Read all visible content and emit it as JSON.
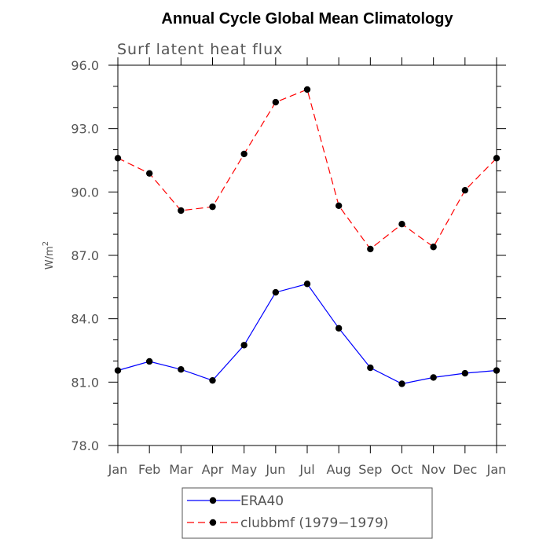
{
  "chart_data": {
    "type": "line",
    "title": "Annual Cycle Global Mean Climatology",
    "subtitle": "Surf latent heat flux",
    "xlabel": "",
    "ylabel_base": "W/m",
    "ylabel_sup": "2",
    "categories": [
      "Jan",
      "Feb",
      "Mar",
      "Apr",
      "May",
      "Jun",
      "Jul",
      "Aug",
      "Sep",
      "Oct",
      "Nov",
      "Dec",
      "Jan"
    ],
    "ylim": [
      78.0,
      96.0
    ],
    "yticks": [
      78.0,
      81.0,
      84.0,
      87.0,
      90.0,
      93.0,
      96.0
    ],
    "ytick_labels": [
      "78.0",
      "81.0",
      "84.0",
      "87.0",
      "90.0",
      "93.0",
      "96.0"
    ],
    "legend_position": "bottom-center",
    "series": [
      {
        "name": "ERA40",
        "color": "#0000ff",
        "dashed": false,
        "values": [
          81.55,
          81.98,
          81.6,
          81.08,
          82.75,
          85.25,
          85.65,
          83.55,
          81.68,
          80.92,
          81.22,
          81.42,
          81.55
        ]
      },
      {
        "name": "clubbmf (1979−1979)",
        "color": "#ff0000",
        "dashed": true,
        "values": [
          91.6,
          90.88,
          89.12,
          89.3,
          91.8,
          94.25,
          94.85,
          89.35,
          87.3,
          88.48,
          87.4,
          90.08,
          91.6
        ]
      }
    ]
  }
}
